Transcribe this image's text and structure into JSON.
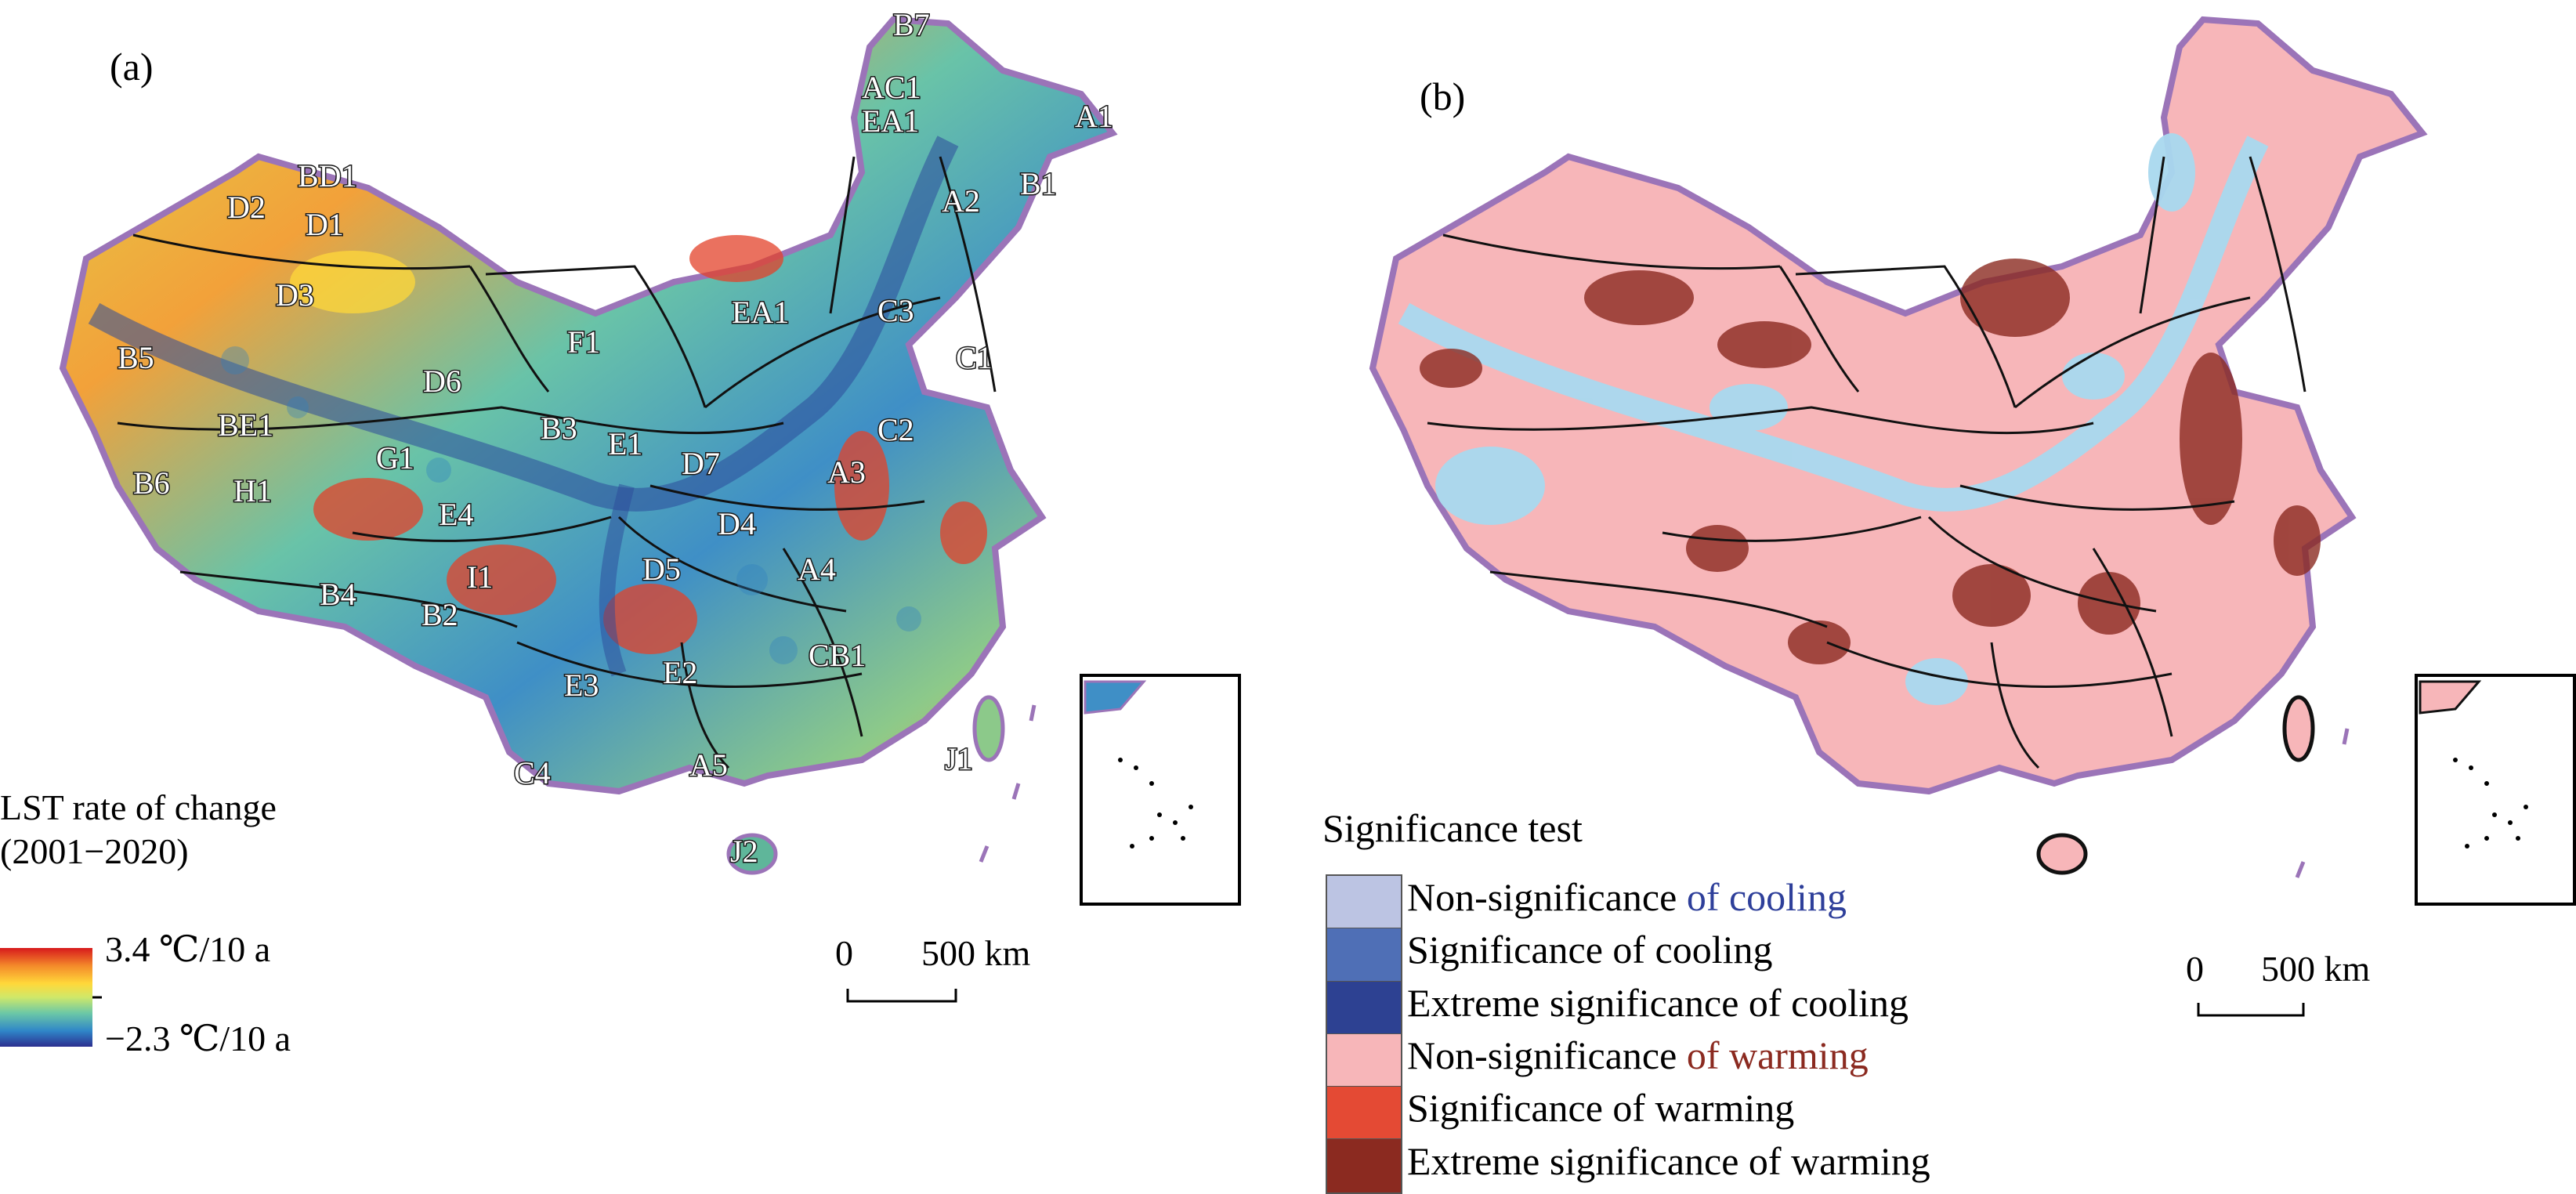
{
  "panel_a": {
    "label": "(a)",
    "legend_title_line1": "LST rate of change",
    "legend_title_line2": "(2001−2020)",
    "legend_max": "3.4 ℃/10 a",
    "legend_min": "−2.3 ℃/10 a",
    "scale_zero": "0",
    "scale_distance": "500 km",
    "regions": [
      "B7",
      "AC1",
      "EA1",
      "A1",
      "BD1",
      "D2",
      "D1",
      "A2",
      "B1",
      "D3",
      "EA1",
      "C3",
      "F1",
      "C1",
      "B5",
      "D6",
      "BE1",
      "B3",
      "E1",
      "C2",
      "G1",
      "D7",
      "A3",
      "B6",
      "H1",
      "E4",
      "D4",
      "D5",
      "A4",
      "I1",
      "B4",
      "B2",
      "CB1",
      "E3",
      "E2",
      "C4",
      "A5",
      "J1",
      "J2"
    ]
  },
  "panel_b": {
    "label": "(b)",
    "legend_title": "Significance test",
    "scale_zero": "0",
    "scale_distance": "500 km",
    "legend_items": [
      {
        "prefix": "Non-significance ",
        "suffix": "of cooling",
        "suffix_color": "#2e3f9a",
        "swatch": "#bcc4e3"
      },
      {
        "prefix": "Significance of cooling",
        "suffix": "",
        "suffix_color": "#000000",
        "swatch": "#4f6fb6"
      },
      {
        "prefix": "Extreme significance of cooling",
        "suffix": "",
        "suffix_color": "#000000",
        "swatch": "#2d4192"
      },
      {
        "prefix": "Non-significance ",
        "suffix": "of warming",
        "suffix_color": "#8b2a20",
        "swatch": "#f7b6b9"
      },
      {
        "prefix": "Significance of warming",
        "suffix": "",
        "suffix_color": "#000000",
        "swatch": "#e44a34"
      },
      {
        "prefix": "Extreme significance of warming",
        "suffix": "",
        "suffix_color": "#000000",
        "swatch": "#8b2a20"
      }
    ]
  }
}
